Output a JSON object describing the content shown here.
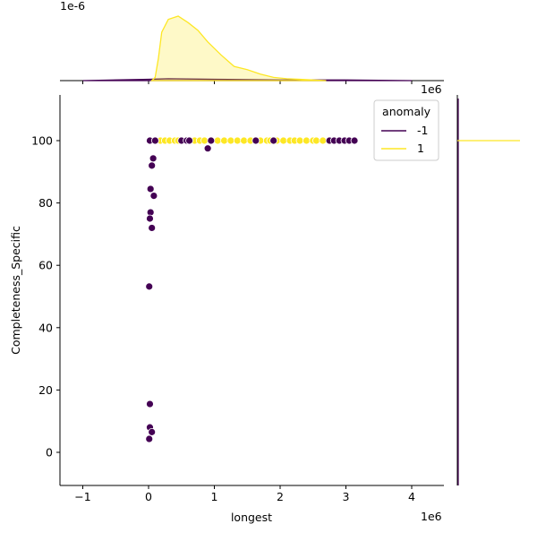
{
  "chart_data": {
    "type": "scatter",
    "xlabel": "longest",
    "ylabel": "Completeness_Specific",
    "x_offset_label": "1e6",
    "top_marginal_offset_label": "1e-6",
    "xlim": [
      -1.35,
      4.5
    ],
    "ylim": [
      -11,
      115
    ],
    "xticks": [
      "−1",
      "0",
      "1",
      "2",
      "3",
      "4"
    ],
    "xtick_values": [
      -1,
      0,
      1,
      2,
      3,
      4
    ],
    "yticks": [
      "0",
      "20",
      "40",
      "60",
      "80",
      "100"
    ],
    "ytick_values": [
      0,
      20,
      40,
      60,
      80,
      100
    ],
    "grid": false,
    "legend": {
      "title": "anomaly",
      "placement": "top-right",
      "entries": [
        "-1",
        "1"
      ]
    },
    "colors": {
      "-1": "#440154",
      "1": "#fde725"
    },
    "series": [
      {
        "name": "1",
        "points": [
          [
            0.1,
            100
          ],
          [
            0.18,
            100
          ],
          [
            0.25,
            100
          ],
          [
            0.32,
            100
          ],
          [
            0.4,
            100
          ],
          [
            0.45,
            100
          ],
          [
            0.7,
            100
          ],
          [
            0.78,
            100
          ],
          [
            0.85,
            100
          ],
          [
            1.05,
            100
          ],
          [
            1.15,
            100
          ],
          [
            1.25,
            100
          ],
          [
            1.35,
            100
          ],
          [
            1.45,
            100
          ],
          [
            1.55,
            100
          ],
          [
            1.7,
            100
          ],
          [
            1.8,
            100
          ],
          [
            1.85,
            100
          ],
          [
            1.95,
            100
          ],
          [
            2.05,
            100
          ],
          [
            2.15,
            100
          ],
          [
            2.22,
            100
          ],
          [
            2.3,
            100
          ],
          [
            2.4,
            100
          ],
          [
            2.5,
            100
          ],
          [
            2.55,
            100
          ],
          [
            2.65,
            100
          ]
        ]
      },
      {
        "name": "-1",
        "points": [
          [
            0.02,
            100
          ],
          [
            0.1,
            100
          ],
          [
            0.5,
            100
          ],
          [
            0.58,
            100
          ],
          [
            0.62,
            100
          ],
          [
            0.95,
            100
          ],
          [
            1.63,
            100
          ],
          [
            1.9,
            100
          ],
          [
            2.75,
            100
          ],
          [
            2.82,
            100
          ],
          [
            2.9,
            100
          ],
          [
            2.98,
            100
          ],
          [
            3.05,
            100
          ],
          [
            3.13,
            100
          ],
          [
            0.9,
            97.5
          ],
          [
            0.07,
            94.3
          ],
          [
            0.05,
            92
          ],
          [
            0.03,
            84.5
          ],
          [
            0.08,
            82.3
          ],
          [
            0.03,
            77
          ],
          [
            0.02,
            75
          ],
          [
            0.05,
            72
          ],
          [
            0.01,
            53.2
          ],
          [
            0.02,
            15.5
          ],
          [
            0.02,
            8
          ],
          [
            0.05,
            6.5
          ],
          [
            0.01,
            4.3
          ]
        ]
      }
    ],
    "top_marginal_kde": {
      "1": {
        "x": [
          0.05,
          0.1,
          0.15,
          0.2,
          0.3,
          0.45,
          0.6,
          0.75,
          0.9,
          1.1,
          1.3,
          1.5,
          1.7,
          1.9,
          2.1,
          2.3,
          2.5,
          2.7
        ],
        "density": [
          0,
          0.05,
          0.35,
          0.75,
          0.95,
          1.0,
          0.9,
          0.78,
          0.6,
          0.4,
          0.22,
          0.17,
          0.1,
          0.05,
          0.03,
          0.02,
          0.01,
          0
        ]
      },
      "-1": {
        "x": [
          -1.0,
          0.0,
          0.3,
          1.0,
          2.0,
          3.0,
          4.0
        ],
        "density": [
          0,
          0.02,
          0.03,
          0.02,
          0.01,
          0.01,
          0
        ]
      }
    }
  }
}
